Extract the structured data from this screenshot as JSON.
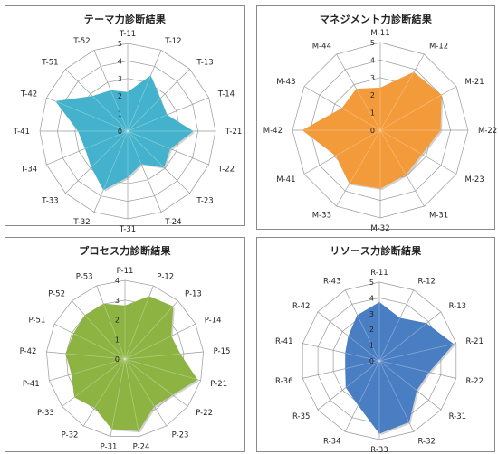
{
  "chart_data": [
    {
      "type": "radar",
      "title": "テーマ力診断結果",
      "color": "#44b2cc",
      "rmax": 5,
      "ticks": [
        0,
        1,
        2,
        3,
        4,
        5
      ],
      "categories": [
        "T-11",
        "T-12",
        "T-13",
        "T-14",
        "T-21",
        "T-22",
        "T-23",
        "T-24",
        "T-31",
        "T-32",
        "T-33",
        "T-34",
        "T-41",
        "T-42",
        "T-51",
        "T-52"
      ],
      "values": [
        2.2,
        3.4,
        2.6,
        2.4,
        3.7,
        2.6,
        2.9,
        2.0,
        2.6,
        3.6,
        2.9,
        2.6,
        2.8,
        4.4,
        2.8,
        2.5
      ]
    },
    {
      "type": "radar",
      "title": "マネジメント力診断結果",
      "color": "#f39a3a",
      "rmax": 5,
      "ticks": [
        0,
        1,
        2,
        3,
        4,
        5
      ],
      "categories": [
        "M-11",
        "M-12",
        "M-21",
        "M-22",
        "M-23",
        "M-31",
        "M-32",
        "M-33",
        "M-41",
        "M-42",
        "M-43",
        "M-44"
      ],
      "values": [
        2.4,
        3.8,
        4.0,
        3.4,
        2.7,
        2.9,
        3.3,
        3.5,
        2.9,
        4.4,
        2.5,
        2.7
      ]
    },
    {
      "type": "radar",
      "title": "プロセス力診断結果",
      "color": "#8db443",
      "rmax": 4,
      "ticks": [
        0,
        1,
        2,
        3,
        4
      ],
      "categories": [
        "P-11",
        "P-12",
        "P-13",
        "P-14",
        "P-15",
        "P-21",
        "P-22",
        "P-23",
        "P-24",
        "P-31",
        "P-32",
        "P-33",
        "P-41",
        "P-42",
        "P-51",
        "P-52",
        "P-53"
      ],
      "values": [
        2.7,
        3.4,
        3.6,
        2.6,
        2.8,
        3.8,
        3.0,
        2.8,
        3.7,
        3.6,
        2.9,
        3.2,
        2.8,
        3.0,
        2.9,
        3.0,
        3.0
      ]
    },
    {
      "type": "radar",
      "title": "リソース力診断結果",
      "color": "#4a7ec3",
      "rmax": 5,
      "ticks": [
        0,
        1,
        2,
        3,
        4,
        5
      ],
      "categories": [
        "R-11",
        "R-12",
        "R-13",
        "R-21",
        "R-22",
        "R-31",
        "R-32",
        "R-33",
        "R-34",
        "R-35",
        "R-36",
        "R-41",
        "R-42",
        "R-43"
      ],
      "values": [
        3.7,
        3.0,
        3.8,
        4.8,
        3.2,
        3.0,
        4.3,
        4.6,
        3.1,
        2.7,
        2.2,
        2.2,
        2.5,
        3.2
      ]
    }
  ]
}
